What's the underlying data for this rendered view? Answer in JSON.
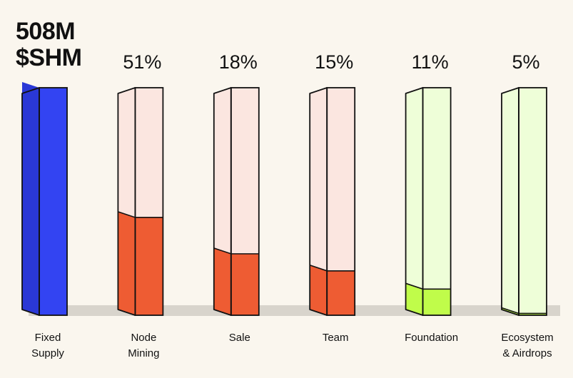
{
  "headline": {
    "amount": "508M",
    "token": "$SHM"
  },
  "colors": {
    "background": "#faf6ee",
    "shadow": "#d8d4cc",
    "outline": "#111111",
    "supply_fill": "#3344f2",
    "supply_side": "#2a38d6",
    "orange_empty": "#fbe6e0",
    "orange_fill": "#ee5c33",
    "green_empty": "#eefed8",
    "green_fill": "#c0fc4a"
  },
  "chart_data": {
    "type": "bar",
    "categories": [
      "Fixed Supply",
      "Node Mining",
      "Sale",
      "Team",
      "Foundation",
      "Ecosystem & Airdrops"
    ],
    "category_lines": [
      [
        "Fixed",
        "Supply"
      ],
      [
        "Node",
        "Mining"
      ],
      [
        "Sale"
      ],
      [
        "Team"
      ],
      [
        "Foundation"
      ],
      [
        "Ecosystem",
        "& Airdrops"
      ]
    ],
    "value_labels": [
      "",
      "51%",
      "18%",
      "15%",
      "11%",
      "5%"
    ],
    "values": [
      100,
      51,
      18,
      15,
      11,
      5
    ],
    "fill_fractions": [
      1.0,
      0.43,
      0.27,
      0.195,
      0.115,
      0.008
    ],
    "palette": [
      "blue",
      "orange",
      "orange",
      "orange",
      "green",
      "green"
    ],
    "unit": "%"
  }
}
